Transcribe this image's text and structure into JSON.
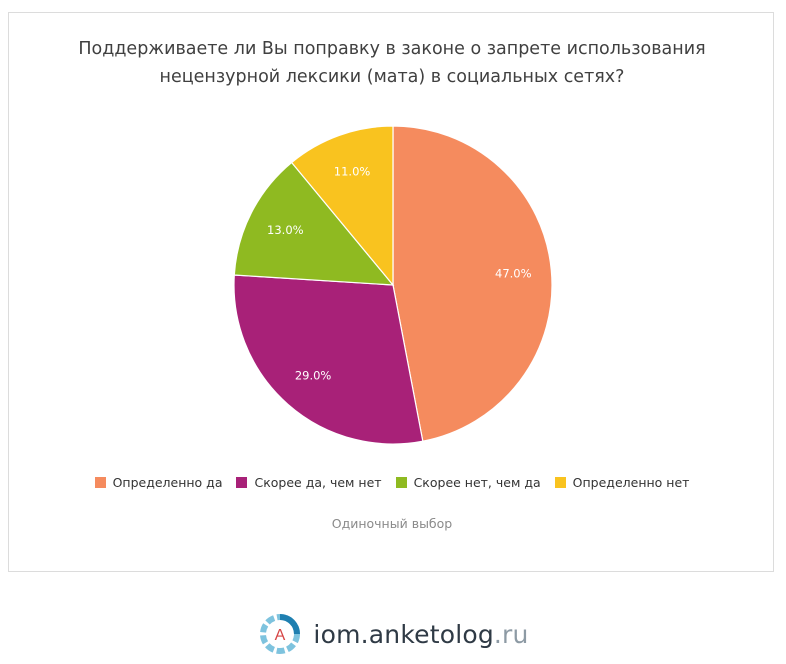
{
  "chart_data": {
    "type": "pie",
    "title_lines": [
      "Поддерживаете ли Вы поправку в законе о запрете использования",
      "нецензурной лексики (мата) в социальных сетях?"
    ],
    "categories": [
      "Определенно да",
      "Скорее да, чем нет",
      "Скорее нет, чем да",
      "Определенно нет"
    ],
    "values": [
      47.0,
      29.0,
      13.0,
      11.0
    ],
    "labels": [
      "47.0%",
      "29.0%",
      "13.0%",
      "11.0%"
    ],
    "colors": [
      "#f58b5e",
      "#a82178",
      "#8fba21",
      "#f9c31f"
    ],
    "start_angle_deg": 0,
    "direction": "clockwise",
    "legend_position": "bottom",
    "subtitle": "Одиночный выбор"
  },
  "footer": {
    "logo_letter": "А",
    "brand_main": "iom.anketolog",
    "brand_tld": ".ru"
  }
}
